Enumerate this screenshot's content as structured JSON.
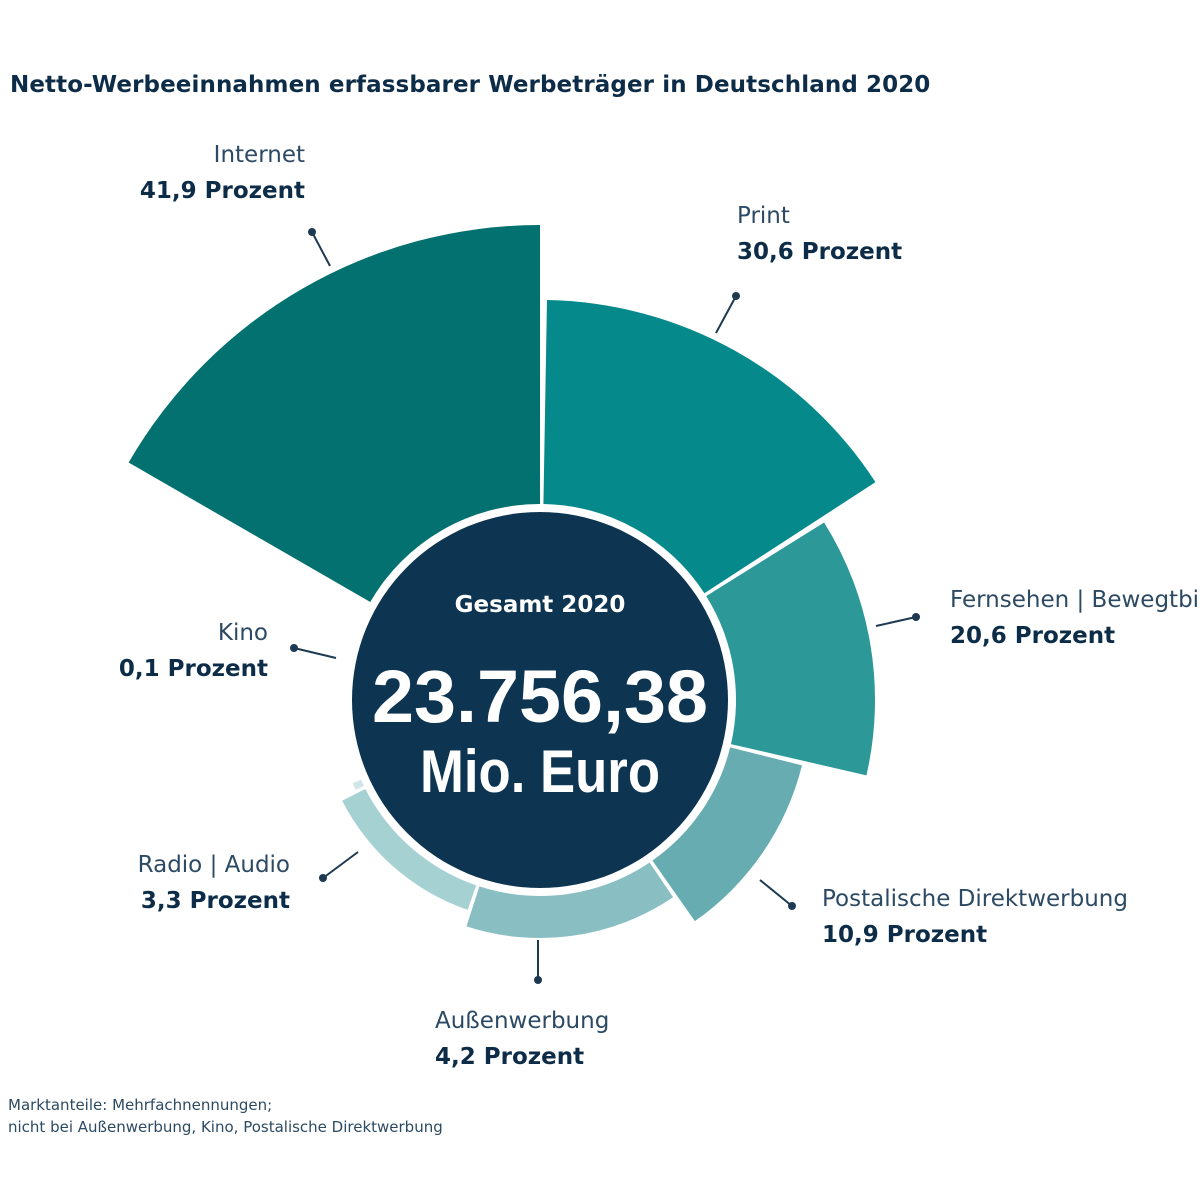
{
  "chart_data": {
    "type": "pie",
    "title": "Netto-Werbeeinnahmen erfassbarer Werbeträger in Deutschland 2020",
    "center": {
      "label": "Gesamt 2020",
      "total": "23.756,38",
      "unit": "Mio. Euro"
    },
    "segments": [
      {
        "name": "Internet",
        "value": 41.9,
        "value_label": "41,9 Prozent",
        "color": "#03716f"
      },
      {
        "name": "Print",
        "value": 30.6,
        "value_label": "30,6 Prozent",
        "color": "#05898a"
      },
      {
        "name": "Fernsehen | Bewegtbild",
        "value": 20.6,
        "value_label": "20,6 Prozent",
        "color": "#2d9898"
      },
      {
        "name": "Postalische Direktwerbung",
        "value": 10.9,
        "value_label": "10,9 Prozent",
        "color": "#66acb0"
      },
      {
        "name": "Außenwerbung",
        "value": 4.2,
        "value_label": "4,2 Prozent",
        "color": "#89bfc2"
      },
      {
        "name": "Radio | Audio",
        "value": 3.3,
        "value_label": "3,3 Prozent",
        "color": "#a6d1d3"
      },
      {
        "name": "Kino",
        "value": 0.1,
        "value_label": "0,1 Prozent",
        "color": "#cfe5e6"
      }
    ],
    "center_color": "#0d3552",
    "leader_color": "#1e3a52"
  },
  "footnote": {
    "line1": "Marktanteile: Mehrfachnennungen;",
    "line2": "nicht bei Außenwerbung, Kino, Postalische Direktwerbung"
  }
}
